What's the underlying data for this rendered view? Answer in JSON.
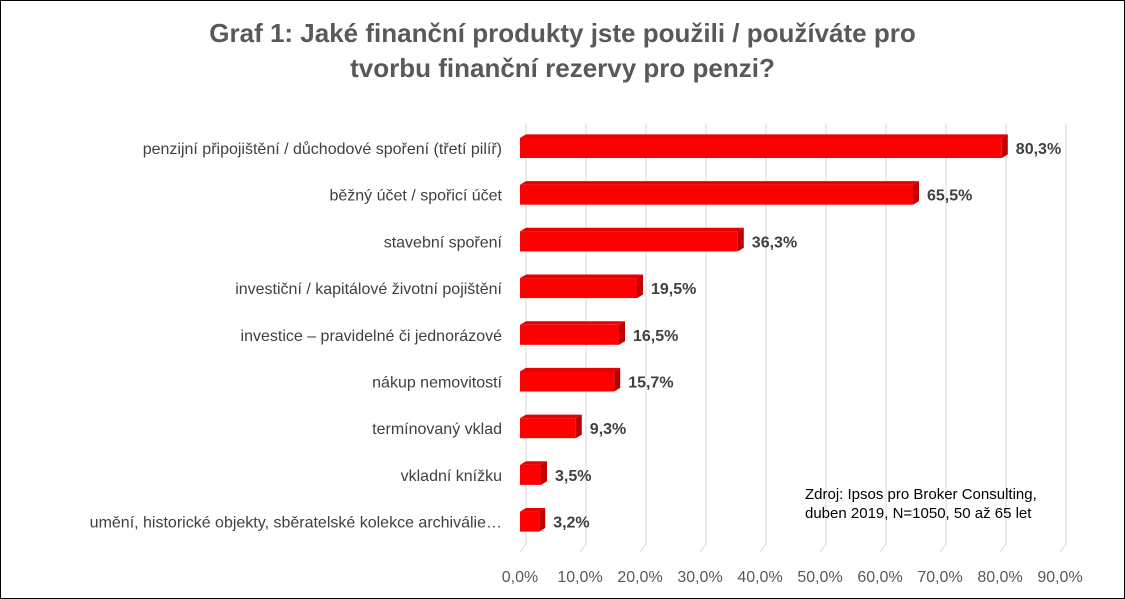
{
  "chart_data": {
    "type": "bar",
    "orientation": "horizontal",
    "title_line1": "Graf 1: Jaké finanční produkty jste použili / používáte pro",
    "title_line2": "tvorbu finanční rezervy pro penzi?",
    "categories": [
      "penzijní připojištění / důchodové spoření (třetí pilíř)",
      "běžný účet / spořicí účet",
      "stavební spoření",
      "investiční / kapitálové životní pojištění",
      "investice – pravidelné či jednorázové",
      "nákup nemovitostí",
      "termínovaný vklad",
      "vkladní knížku",
      "umění, historické objekty, sběratelské kolekce archiválie…"
    ],
    "values": [
      80.3,
      65.5,
      36.3,
      19.5,
      16.5,
      15.7,
      9.3,
      3.5,
      3.2
    ],
    "value_labels": [
      "80,3%",
      "65,5%",
      "36,3%",
      "19,5%",
      "16,5%",
      "15,7%",
      "9,3%",
      "3,5%",
      "3,2%"
    ],
    "x_ticks": [
      "0,0%",
      "10,0%",
      "20,0%",
      "30,0%",
      "40,0%",
      "50,0%",
      "60,0%",
      "70,0%",
      "80,0%",
      "90,0%"
    ],
    "xlim": [
      0,
      90
    ],
    "grid": true,
    "bar_color": "#ff0000",
    "bar_side_color": "#c00000",
    "source_line1": "Zdroj: Ipsos pro Broker Consulting,",
    "source_line2": "duben 2019, N=1050, 50 až 65 let"
  }
}
